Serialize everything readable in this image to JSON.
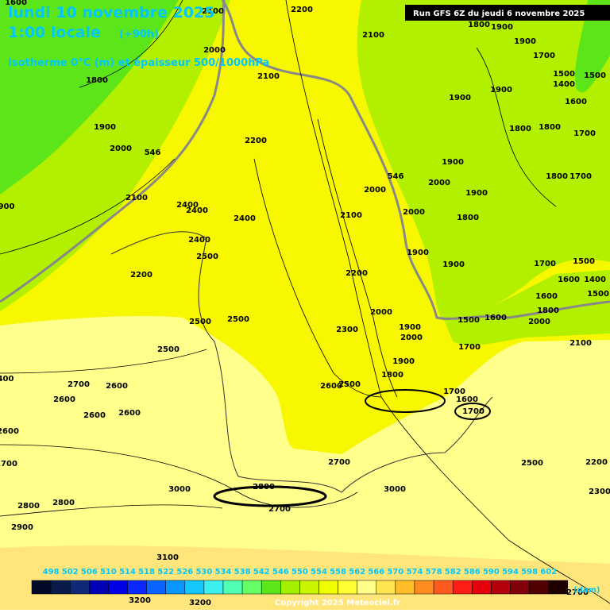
{
  "header": {
    "date": "lundi 10 novembre 2025",
    "hour": "1:00 locale",
    "lead": "(+90h)",
    "field": "Isotherme 0°C (m) et épaisseur 500/1000hPa",
    "run": "Run GFS 6Z du jeudi 6 novembre 2025"
  },
  "contour_labels": [
    1600,
    2100,
    2200,
    2100,
    1800,
    1900,
    1900,
    1700,
    1500,
    1500,
    1400,
    2000,
    2100,
    1800,
    1900,
    1900,
    1600,
    1900,
    1800,
    1800,
    1700,
    2000,
    546,
    2200,
    1900,
    2000,
    1800,
    1700,
    546,
    2000,
    1900,
    2100,
    900,
    2400,
    2400,
    2100,
    2000,
    1800,
    2400,
    2400,
    1900,
    1900,
    2500,
    1700,
    1500,
    2200,
    2200,
    1600,
    1400,
    1500,
    1600,
    2000,
    1800,
    1600,
    2000,
    1500,
    2500,
    2500,
    1900,
    2300,
    2000,
    1700,
    2100,
    2500,
    1900,
    1800,
    400,
    2700,
    2600,
    2600,
    2500,
    1700,
    1600,
    1700,
    2600,
    2600,
    2600,
    2600,
    2700,
    2700,
    2500,
    2200,
    3000,
    3000,
    2300,
    2800,
    2800,
    2800,
    2700,
    2900,
    3100,
    3200,
    3200,
    2700
  ],
  "legend": {
    "unit": "(dam)",
    "labels": [
      498,
      502,
      506,
      510,
      514,
      518,
      522,
      526,
      530,
      534,
      538,
      542,
      546,
      550,
      554,
      558,
      562,
      566,
      570,
      574,
      578,
      582,
      586,
      590,
      594,
      598,
      602
    ],
    "colors": [
      "#000a28",
      "#0a1a4a",
      "#102a78",
      "#0000b4",
      "#0000e6",
      "#0a28ff",
      "#0a64ff",
      "#0a96ff",
      "#14c8ff",
      "#3cf0f0",
      "#50ffb4",
      "#64ff64",
      "#5ae61a",
      "#a0f000",
      "#c8f500",
      "#f0ff00",
      "#ffff32",
      "#ffff8c",
      "#ffe650",
      "#ffbe28",
      "#ff8c1e",
      "#ff5a1e",
      "#ff1e14",
      "#e6000a",
      "#b4000a",
      "#82000a",
      "#500000",
      "#1e0000"
    ]
  },
  "footer": {
    "copyright": "Copyright 2025 Meteociel.fr"
  }
}
